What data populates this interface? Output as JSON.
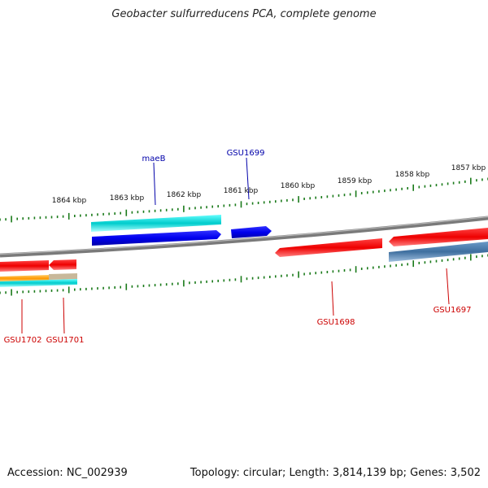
{
  "title": "Geobacter sulfurreducens PCA, complete genome",
  "footer": {
    "accession": "Accession: NC_002939",
    "summary": "Topology: circular; Length: 3,814,139 bp; Genes: 3,502"
  },
  "scale_labels": [
    "1864 kbp",
    "1863 kbp",
    "1862 kbp",
    "1861 kbp",
    "1860 kbp",
    "1859 kbp",
    "1858 kbp",
    "1857 kbp"
  ],
  "gene_labels": [
    {
      "text": "maeB",
      "color": "#0000aa"
    },
    {
      "text": "GSU1699",
      "color": "#0000aa"
    },
    {
      "text": "GSU1702",
      "color": "#cc0000"
    },
    {
      "text": "GSU1701",
      "color": "#cc0000"
    },
    {
      "text": "GSU1698",
      "color": "#cc0000"
    },
    {
      "text": "GSU1697",
      "color": "#cc0000"
    }
  ],
  "colors": {
    "backbone": "#808080",
    "tick": "#1a7a1a",
    "forward_gene": "#0000ee",
    "reverse_gene": "#ee0000",
    "cyan_feature": "#00cccc",
    "steel_feature": "#4a7aaa",
    "orange_feature": "#ff9900"
  }
}
